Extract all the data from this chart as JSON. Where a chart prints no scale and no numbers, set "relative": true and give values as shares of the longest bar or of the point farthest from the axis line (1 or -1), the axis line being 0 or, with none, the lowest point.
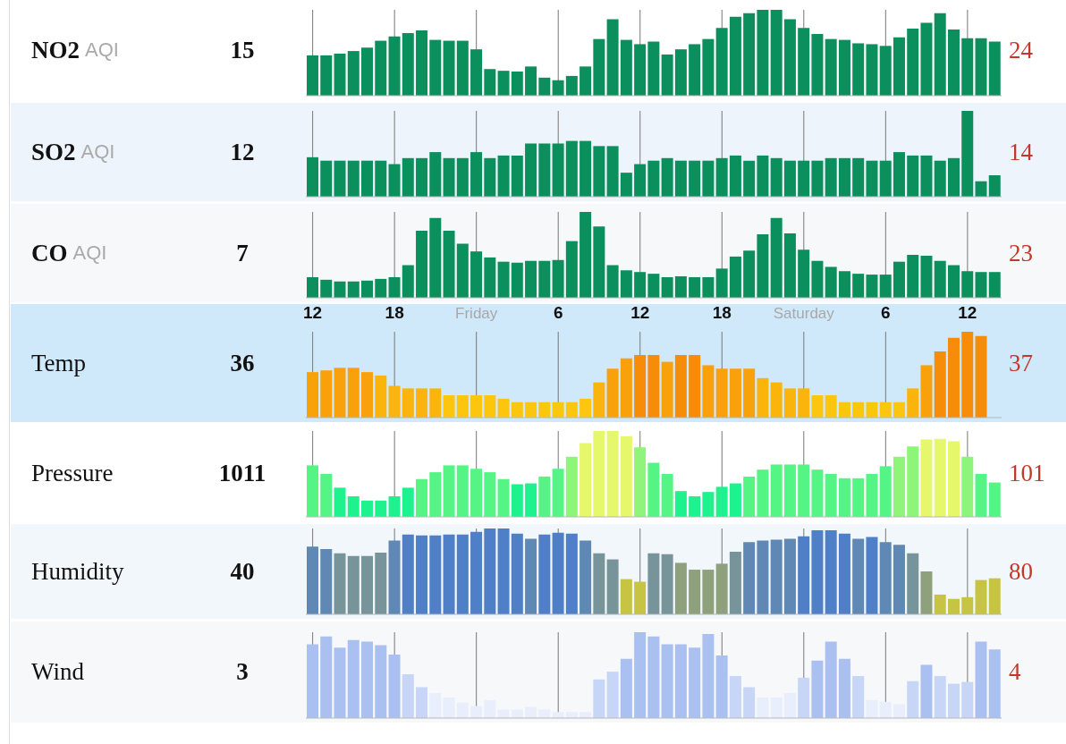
{
  "chart_data": [
    {
      "type": "bar",
      "ylabel": "NO2 AQI",
      "annotations": [
        "15",
        "24"
      ],
      "relative": true,
      "grid": "x",
      "tick_labels": false,
      "color": "#0b8f5c",
      "categories": [
        null,
        null,
        null,
        null,
        null,
        null,
        null,
        null,
        null,
        null,
        null,
        null,
        null,
        null,
        null,
        null,
        null,
        null,
        null,
        null,
        null,
        null,
        null,
        null,
        null,
        null,
        null,
        null,
        null,
        null,
        null,
        null,
        null,
        null,
        null,
        null,
        null,
        null,
        null,
        null,
        null,
        null,
        null,
        null,
        null,
        null,
        null,
        null,
        null,
        null,
        null
      ],
      "values": [
        0.47,
        0.47,
        0.49,
        0.52,
        0.56,
        0.64,
        0.69,
        0.73,
        0.76,
        0.65,
        0.64,
        0.64,
        0.54,
        0.31,
        0.29,
        0.28,
        0.34,
        0.21,
        0.18,
        0.23,
        0.34,
        0.66,
        0.89,
        0.65,
        0.6,
        0.63,
        0.48,
        0.54,
        0.6,
        0.66,
        0.79,
        0.92,
        0.96,
        1,
        1,
        0.89,
        0.79,
        0.72,
        0.66,
        0.65,
        0.61,
        0.6,
        0.58,
        0.68,
        0.78,
        0.85,
        0.96,
        0.77,
        0.67,
        0.67,
        0.63
      ]
    },
    {
      "type": "bar",
      "ylabel": "SO2 AQI",
      "annotations": [
        "12",
        "14"
      ],
      "relative": true,
      "grid": "x",
      "tick_labels": false,
      "color": "#0b8f5c",
      "categories": [
        null,
        null,
        null,
        null,
        null,
        null,
        null,
        null,
        null,
        null,
        null,
        null,
        null,
        null,
        null,
        null,
        null,
        null,
        null,
        null,
        null,
        null,
        null,
        null,
        null,
        null,
        null,
        null,
        null,
        null,
        null,
        null,
        null,
        null,
        null,
        null,
        null,
        null,
        null,
        null,
        null,
        null,
        null,
        null,
        null,
        null,
        null,
        null,
        null,
        null,
        null
      ],
      "values": [
        0.46,
        0.42,
        0.42,
        0.42,
        0.42,
        0.42,
        0.38,
        0.45,
        0.45,
        0.52,
        0.45,
        0.45,
        0.52,
        0.45,
        0.48,
        0.48,
        0.62,
        0.62,
        0.62,
        0.65,
        0.65,
        0.59,
        0.59,
        0.28,
        0.38,
        0.42,
        0.45,
        0.42,
        0.42,
        0.42,
        0.45,
        0.48,
        0.42,
        0.48,
        0.45,
        0.42,
        0.42,
        0.42,
        0.45,
        0.45,
        0.45,
        0.42,
        0.42,
        0.52,
        0.48,
        0.48,
        0.42,
        0.45,
        1,
        0.18,
        0.25
      ]
    },
    {
      "type": "bar",
      "ylabel": "CO AQI",
      "annotations": [
        "7",
        "23"
      ],
      "relative": true,
      "grid": "x",
      "tick_labels": false,
      "color": "#0b8f5c",
      "categories": [
        null,
        null,
        null,
        null,
        null,
        null,
        null,
        null,
        null,
        null,
        null,
        null,
        null,
        null,
        null,
        null,
        null,
        null,
        null,
        null,
        null,
        null,
        null,
        null,
        null,
        null,
        null,
        null,
        null,
        null,
        null,
        null,
        null,
        null,
        null,
        null,
        null,
        null,
        null,
        null,
        null,
        null,
        null,
        null,
        null,
        null,
        null,
        null,
        null,
        null,
        null
      ],
      "values": [
        0.24,
        0.21,
        0.19,
        0.19,
        0.2,
        0.22,
        0.24,
        0.38,
        0.78,
        0.93,
        0.78,
        0.63,
        0.54,
        0.47,
        0.42,
        0.41,
        0.43,
        0.43,
        0.44,
        0.66,
        1,
        0.83,
        0.38,
        0.32,
        0.3,
        0.28,
        0.24,
        0.25,
        0.24,
        0.24,
        0.34,
        0.48,
        0.55,
        0.74,
        0.93,
        0.75,
        0.56,
        0.43,
        0.36,
        0.31,
        0.28,
        0.27,
        0.27,
        0.42,
        0.5,
        0.49,
        0.43,
        0.38,
        0.31,
        0.3,
        0.3
      ]
    },
    {
      "type": "bar",
      "ylabel": "Temp",
      "annotations": [
        "36",
        "37"
      ],
      "relative": true,
      "grid": "x",
      "tick_labels": "x",
      "categories": [
        "12",
        null,
        null,
        null,
        null,
        null,
        "18",
        null,
        null,
        null,
        null,
        null,
        "Friday",
        null,
        null,
        null,
        null,
        null,
        "6",
        null,
        null,
        null,
        null,
        null,
        "12",
        null,
        null,
        null,
        null,
        null,
        "18",
        null,
        null,
        null,
        null,
        null,
        "Saturday",
        null,
        null,
        null,
        null,
        null,
        "6",
        null,
        null,
        null,
        null,
        null,
        "12",
        null,
        null
      ],
      "values": [
        0.53,
        0.55,
        0.58,
        0.58,
        0.53,
        0.49,
        0.37,
        0.34,
        0.34,
        0.34,
        0.26,
        0.26,
        0.26,
        0.26,
        0.22,
        0.18,
        0.18,
        0.18,
        0.18,
        0.18,
        0.22,
        0.41,
        0.57,
        0.69,
        0.73,
        0.73,
        0.65,
        0.73,
        0.73,
        0.61,
        0.57,
        0.57,
        0.57,
        0.46,
        0.41,
        0.34,
        0.34,
        0.26,
        0.26,
        0.18,
        0.18,
        0.18,
        0.18,
        0.18,
        0.34,
        0.61,
        0.77,
        0.93,
        1,
        0.95,
        null
      ],
      "colors": [
        "#f8a10a",
        "#f8a10a",
        "#f8a10a",
        "#f8a10a",
        "#f8a10a",
        "#fab40c",
        "#fab40c",
        "#fab40c",
        "#fab40c",
        "#fab40c",
        "#fcc60f",
        "#fcc60f",
        "#fcc60f",
        "#fcc60f",
        "#fcc60f",
        "#fcc60f",
        "#fcc60f",
        "#fcc60f",
        "#fcc60f",
        "#fcc60f",
        "#fcc60f",
        "#fab40c",
        "#f8a10a",
        "#f8a10a",
        "#f68c08",
        "#f68c08",
        "#f8a10a",
        "#f68c08",
        "#f68c08",
        "#f8a10a",
        "#f8a10a",
        "#f8a10a",
        "#f8a10a",
        "#fab40c",
        "#fab40c",
        "#fab40c",
        "#fab40c",
        "#fcc60f",
        "#fcc60f",
        "#fcc60f",
        "#fcc60f",
        "#fcc60f",
        "#fcc60f",
        "#fcc60f",
        "#fab40c",
        "#f8a10a",
        "#f68c08",
        "#f68c08",
        "#f68c08",
        "#f68c08",
        null
      ]
    },
    {
      "type": "bar",
      "ylabel": "Pressure",
      "annotations": [
        "1011",
        "101"
      ],
      "relative": true,
      "grid": "x",
      "tick_labels": false,
      "categories": [
        null,
        null,
        null,
        null,
        null,
        null,
        null,
        null,
        null,
        null,
        null,
        null,
        null,
        null,
        null,
        null,
        null,
        null,
        null,
        null,
        null,
        null,
        null,
        null,
        null,
        null,
        null,
        null,
        null,
        null,
        null,
        null,
        null,
        null,
        null,
        null,
        null,
        null,
        null,
        null,
        null,
        null,
        null,
        null,
        null,
        null,
        null,
        null,
        null,
        null,
        null
      ],
      "values": [
        0.6,
        0.5,
        0.34,
        0.24,
        0.19,
        0.19,
        0.24,
        0.34,
        0.44,
        0.52,
        0.6,
        0.6,
        0.56,
        0.52,
        0.44,
        0.38,
        0.39,
        0.47,
        0.56,
        0.7,
        0.86,
        1,
        1,
        0.94,
        0.81,
        0.63,
        0.5,
        0.3,
        0.24,
        0.29,
        0.35,
        0.39,
        0.47,
        0.55,
        0.61,
        0.61,
        0.61,
        0.55,
        0.5,
        0.45,
        0.45,
        0.5,
        0.59,
        0.7,
        0.82,
        0.9,
        0.91,
        0.88,
        0.7,
        0.5,
        0.4
      ],
      "colors": [
        "#55f585",
        "#55f585",
        "#1df28f",
        "#1df28f",
        "#1df28f",
        "#1df28f",
        "#1df28f",
        "#1df28f",
        "#55f585",
        "#55f585",
        "#55f585",
        "#55f585",
        "#55f585",
        "#55f585",
        "#55f585",
        "#1df28f",
        "#1df28f",
        "#55f585",
        "#55f585",
        "#8ef57a",
        "#e6f76c",
        "#e6f76c",
        "#e6f76c",
        "#e6f76c",
        "#8ef57a",
        "#55f585",
        "#55f585",
        "#1df28f",
        "#1df28f",
        "#1df28f",
        "#1df28f",
        "#1df28f",
        "#55f585",
        "#55f585",
        "#55f585",
        "#55f585",
        "#55f585",
        "#55f585",
        "#55f585",
        "#55f585",
        "#55f585",
        "#55f585",
        "#55f585",
        "#8ef57a",
        "#8ef57a",
        "#e6f76c",
        "#e6f76c",
        "#e6f76c",
        "#8ef57a",
        "#55f585",
        "#55f585"
      ]
    },
    {
      "type": "bar",
      "ylabel": "Humidity",
      "annotations": [
        "40",
        "80"
      ],
      "relative": true,
      "grid": "x",
      "tick_labels": false,
      "categories": [
        null,
        null,
        null,
        null,
        null,
        null,
        null,
        null,
        null,
        null,
        null,
        null,
        null,
        null,
        null,
        null,
        null,
        null,
        null,
        null,
        null,
        null,
        null,
        null,
        null,
        null,
        null,
        null,
        null,
        null,
        null,
        null,
        null,
        null,
        null,
        null,
        null,
        null,
        null,
        null,
        null,
        null,
        null,
        null,
        null,
        null,
        null,
        null,
        null,
        null,
        null
      ],
      "values": [
        0.79,
        0.76,
        0.71,
        0.68,
        0.68,
        0.72,
        0.86,
        0.93,
        0.92,
        0.92,
        0.93,
        0.93,
        0.96,
        1,
        1,
        0.94,
        0.88,
        0.93,
        0.95,
        0.94,
        0.86,
        0.71,
        0.64,
        0.41,
        0.38,
        0.71,
        0.7,
        0.6,
        0.52,
        0.52,
        0.59,
        0.73,
        0.84,
        0.86,
        0.87,
        0.88,
        0.91,
        0.98,
        0.98,
        0.94,
        0.88,
        0.9,
        0.84,
        0.81,
        0.71,
        0.5,
        0.23,
        0.18,
        0.2,
        0.4,
        0.42
      ],
      "colors": [
        "#5f88b4",
        "#5f88b4",
        "#77949a",
        "#77949a",
        "#77949a",
        "#77949a",
        "#5f88b4",
        "#4f7fc6",
        "#4f7fc6",
        "#4f7fc6",
        "#4f7fc6",
        "#4f7fc6",
        "#4f7fc6",
        "#4f7fc6",
        "#4f7fc6",
        "#4f7fc6",
        "#5f88b4",
        "#4f7fc6",
        "#4f7fc6",
        "#4f7fc6",
        "#5f88b4",
        "#77949a",
        "#77949a",
        "#c7c443",
        "#c7c443",
        "#77949a",
        "#77949a",
        "#8fa07c",
        "#8fa07c",
        "#8fa07c",
        "#8fa07c",
        "#77949a",
        "#5f88b4",
        "#5f88b4",
        "#5f88b4",
        "#5f88b4",
        "#4f7fc6",
        "#4f7fc6",
        "#4f7fc6",
        "#4f7fc6",
        "#5f88b4",
        "#4f7fc6",
        "#5f88b4",
        "#5f88b4",
        "#77949a",
        "#8fa07c",
        "#c7c443",
        "#c7c443",
        "#c7c443",
        "#c7c443",
        "#c7c443"
      ]
    },
    {
      "type": "bar",
      "ylabel": "Wind",
      "annotations": [
        "3",
        "4"
      ],
      "relative": true,
      "grid": "x",
      "tick_labels": false,
      "categories": [
        null,
        null,
        null,
        null,
        null,
        null,
        null,
        null,
        null,
        null,
        null,
        null,
        null,
        null,
        null,
        null,
        null,
        null,
        null,
        null,
        null,
        null,
        null,
        null,
        null,
        null,
        null,
        null,
        null,
        null,
        null,
        null,
        null,
        null,
        null,
        null,
        null,
        null,
        null,
        null,
        null,
        null,
        null,
        null,
        null,
        null,
        null,
        null,
        null,
        null,
        null
      ],
      "values": [
        0.86,
        0.95,
        0.82,
        0.91,
        0.89,
        0.85,
        0.74,
        0.51,
        0.36,
        0.29,
        0.24,
        0.18,
        0.14,
        0.21,
        0.1,
        0.1,
        0.13,
        0.1,
        0.07,
        0.07,
        0.07,
        0.45,
        0.54,
        0.69,
        1,
        0.95,
        0.86,
        0.86,
        0.82,
        0.98,
        0.73,
        0.49,
        0.36,
        0.24,
        0.24,
        0.29,
        0.47,
        0.67,
        0.89,
        0.69,
        0.49,
        0.21,
        0.19,
        0.16,
        0.43,
        0.62,
        0.49,
        0.4,
        0.42,
        0.89,
        0.8
      ],
      "colors": [
        "#a9c0f1",
        "#a9c0f1",
        "#a9c0f1",
        "#a9c0f1",
        "#a9c0f1",
        "#a9c0f1",
        "#a9c0f1",
        "#c7d5f6",
        "#c7d5f6",
        "#e8eefc",
        "#e8eefc",
        "#e8eefc",
        "#e8eefc",
        "#e8eefc",
        "#e8eefc",
        "#e8eefc",
        "#e8eefc",
        "#e8eefc",
        "#e8eefc",
        "#e8eefc",
        "#e8eefc",
        "#c7d5f6",
        "#c7d5f6",
        "#a9c0f1",
        "#a9c0f1",
        "#a9c0f1",
        "#a9c0f1",
        "#a9c0f1",
        "#a9c0f1",
        "#a9c0f1",
        "#a9c0f1",
        "#c7d5f6",
        "#c7d5f6",
        "#e8eefc",
        "#e8eefc",
        "#e8eefc",
        "#c7d5f6",
        "#a9c0f1",
        "#a9c0f1",
        "#a9c0f1",
        "#c7d5f6",
        "#e8eefc",
        "#e8eefc",
        "#e8eefc",
        "#c7d5f6",
        "#a9c0f1",
        "#c7d5f6",
        "#c7d5f6",
        "#c7d5f6",
        "#a9c0f1",
        "#a9c0f1"
      ]
    }
  ]
}
